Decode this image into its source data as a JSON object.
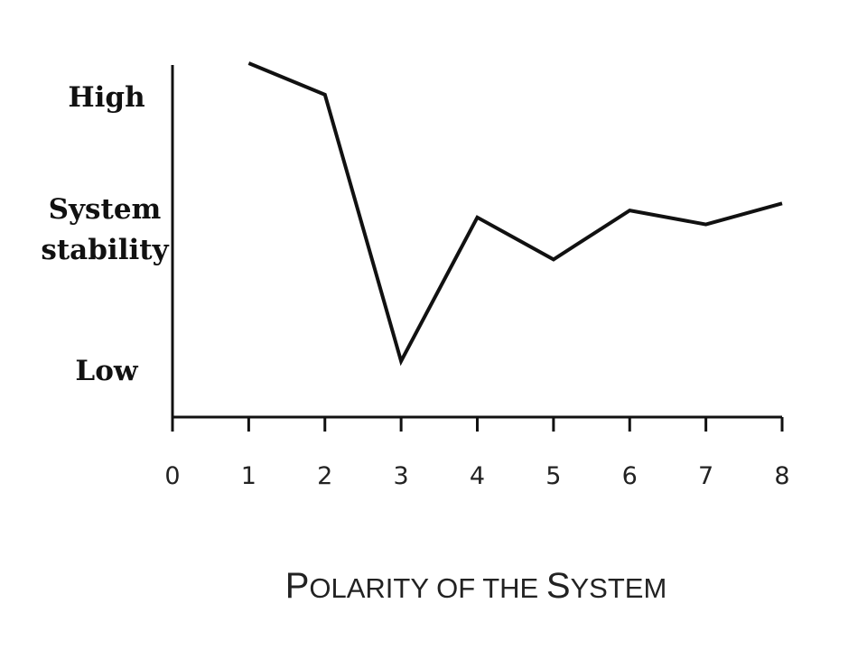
{
  "chart_data": {
    "type": "line",
    "xlabel": "Polarity of the System",
    "xlabel_cap_first": "P",
    "xlabel_rest1": "OLARITY OF THE ",
    "xlabel_cap2": "S",
    "xlabel_rest2": "YSTEM",
    "ylabel_line1": "System",
    "ylabel_line2": "stability",
    "y_high_label": "High",
    "y_low_label": "Low",
    "xlim": [
      0,
      8
    ],
    "ylim": [
      0,
      10
    ],
    "x_ticks": [
      0,
      1,
      2,
      3,
      4,
      5,
      6,
      7,
      8
    ],
    "series": [
      {
        "x": [
          1,
          2,
          3,
          4,
          5,
          6,
          7,
          8
        ],
        "values": [
          10,
          9.1,
          1.5,
          5.6,
          4.4,
          5.8,
          5.4,
          6.0
        ]
      }
    ],
    "line_color": "#111111"
  }
}
